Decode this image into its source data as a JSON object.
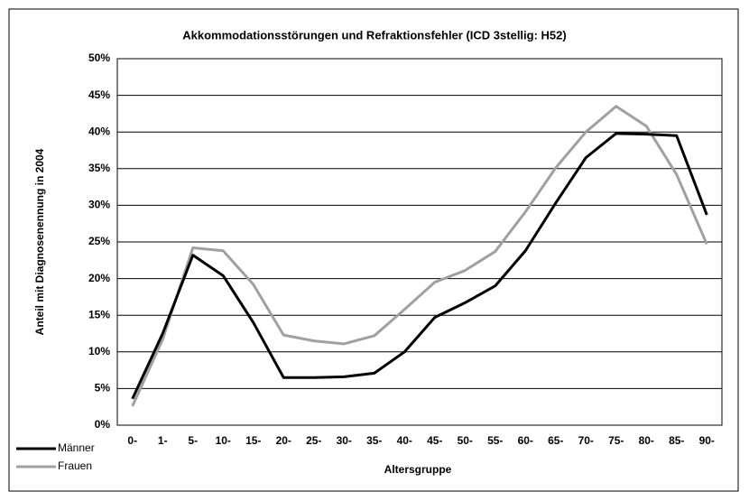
{
  "chart_data": {
    "type": "line",
    "title": "Akkommodationsstörungen und Refraktionsfehler (ICD 3stellig: H52)",
    "x_label": "Altersgruppe",
    "y_label": "Anteil mit Diagnosenennung in 2004",
    "categories": [
      "0-",
      "1-",
      "5-",
      "10-",
      "15-",
      "20-",
      "25-",
      "30-",
      "35-",
      "40-",
      "45-",
      "50-",
      "55-",
      "60-",
      "65-",
      "70-",
      "75-",
      "80-",
      "85-",
      "90-"
    ],
    "series": [
      {
        "name": "Männer",
        "color": "#000000",
        "values": [
          3.6,
          12.5,
          23.2,
          20.4,
          14,
          6.5,
          6.5,
          6.6,
          7.1,
          10,
          14.7,
          16.7,
          19,
          23.8,
          30.3,
          36.5,
          39.8,
          39.7,
          39.5,
          28.7
        ]
      },
      {
        "name": "Frauen",
        "color": "#a0a0a0",
        "values": [
          2.6,
          11.7,
          24.2,
          23.8,
          19.2,
          12.3,
          11.5,
          11.1,
          12.2,
          15.8,
          19.5,
          21.1,
          23.7,
          29.1,
          35.1,
          40,
          43.5,
          40.8,
          34.2,
          24.7
        ]
      }
    ],
    "ylim": [
      0,
      50
    ],
    "yticks": [
      {
        "value": 0,
        "label": "0%"
      },
      {
        "value": 5,
        "label": "5%"
      },
      {
        "value": 10,
        "label": "10%"
      },
      {
        "value": 15,
        "label": "15%"
      },
      {
        "value": 20,
        "label": "20%"
      },
      {
        "value": 25,
        "label": "25%"
      },
      {
        "value": 30,
        "label": "30%"
      },
      {
        "value": 35,
        "label": "35%"
      },
      {
        "value": 40,
        "label": "40%"
      },
      {
        "value": 45,
        "label": "45%"
      },
      {
        "value": 50,
        "label": "50%"
      }
    ],
    "grid": true,
    "legend": "bottom-left"
  }
}
